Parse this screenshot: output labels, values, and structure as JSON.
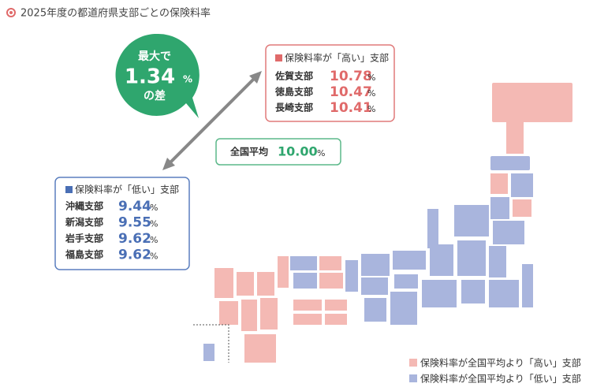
{
  "title": "2025年度の都道府県支部ごとの保険料率",
  "bubble": {
    "line1": "最大で",
    "value": "1.34",
    "unit": "%",
    "line2": "の差"
  },
  "high": {
    "heading": "保険料率が「高い」支部",
    "rows": [
      {
        "name": "佐賀支部",
        "value": "10.78",
        "unit": "%"
      },
      {
        "name": "徳島支部",
        "value": "10.47",
        "unit": "%"
      },
      {
        "name": "長崎支部",
        "value": "10.41",
        "unit": "%"
      }
    ]
  },
  "average": {
    "label": "全国平均",
    "value": "10.00",
    "unit": "%"
  },
  "low": {
    "heading": "保険料率が「低い」支部",
    "rows": [
      {
        "name": "沖縄支部",
        "value": "9.44",
        "unit": "%"
      },
      {
        "name": "新潟支部",
        "value": "9.55",
        "unit": "%"
      },
      {
        "name": "岩手支部",
        "value": "9.62",
        "unit": "%"
      },
      {
        "name": "福島支部",
        "value": "9.62",
        "unit": "%"
      }
    ]
  },
  "legend": [
    "保険料率が全国平均より「高い」支部",
    "保険料率が全国平均より「低い」支部"
  ]
}
